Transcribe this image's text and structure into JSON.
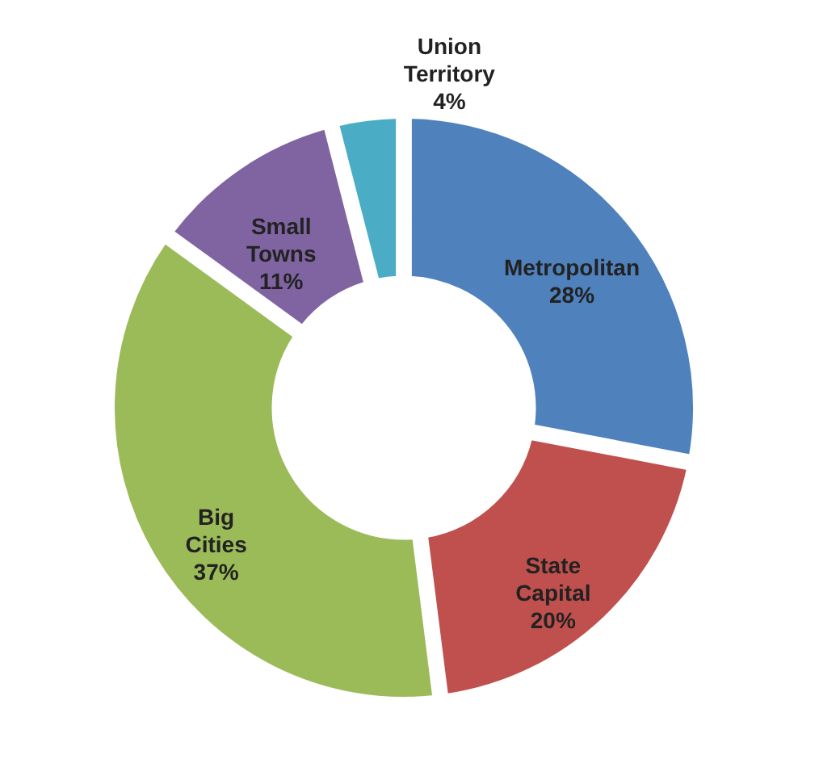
{
  "chart_data": {
    "type": "donut",
    "categories": [
      "Metropolitan",
      "State Capital",
      "Big Cities",
      "Small Towns",
      "Union Territory"
    ],
    "values": [
      28,
      20,
      37,
      11,
      4
    ],
    "value_labels": [
      "28%",
      "20%",
      "37%",
      "11%",
      "4%"
    ],
    "colors": [
      "#4f81bd",
      "#c0504d",
      "#9bbb59",
      "#8064a2",
      "#4bacc6"
    ],
    "legend": false
  }
}
